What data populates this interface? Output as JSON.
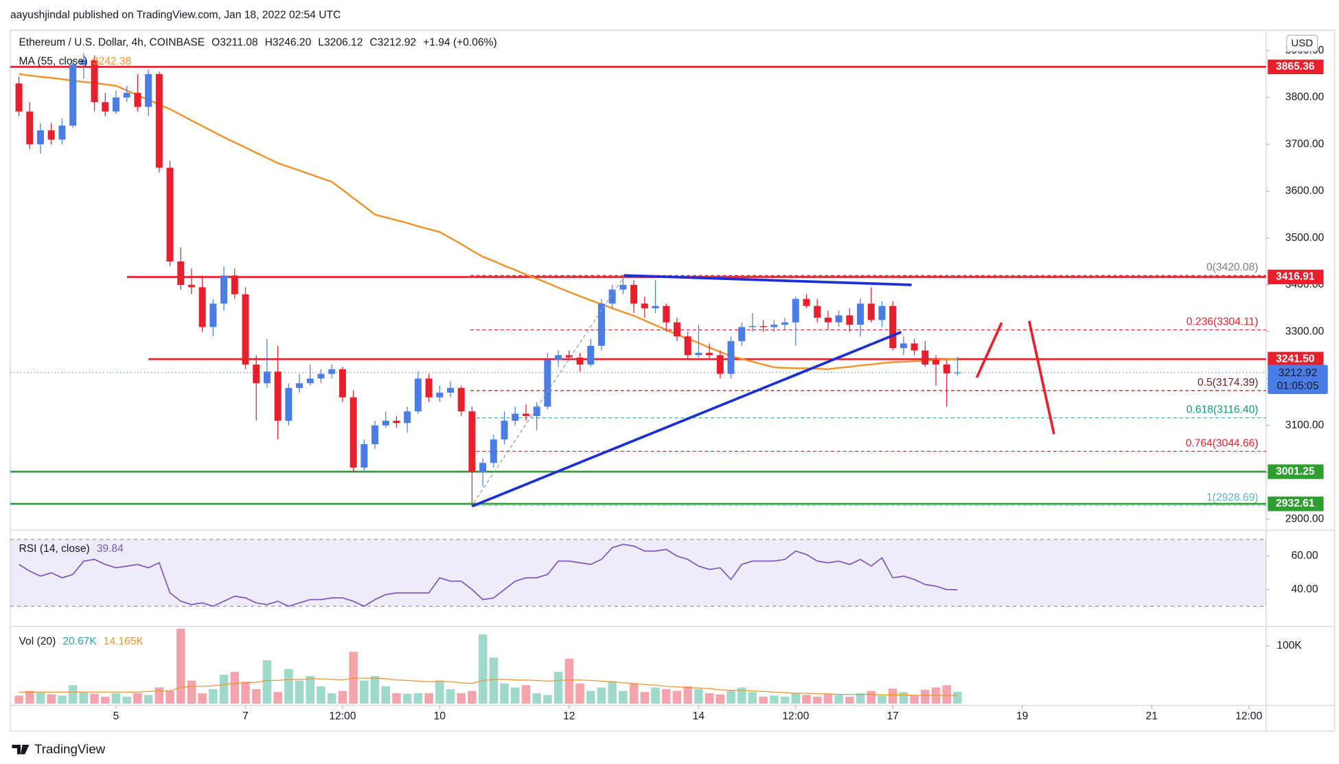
{
  "chart_data": {
    "type": "candlestick",
    "publisher": "aayushjindal published on TradingView.com, Jan 18, 2022 02:54 UTC",
    "symbol": "Ethereum / U.S. Dollar, 4h, COINBASE",
    "ohlc_text": [
      "O3211.08",
      "H3246.20",
      "L3206.12",
      "C3212.92",
      "+1.94 (+0.06%)"
    ],
    "currency": "USD",
    "footer": "TradingView",
    "up_color": "#4a7ee6",
    "down_color": "#e8202e",
    "xlim": [
      -0.8,
      115.6
    ],
    "xticks": [
      {
        "value": 9,
        "label": "5"
      },
      {
        "value": 21,
        "label": "7"
      },
      {
        "value": 30,
        "label": "12:00"
      },
      {
        "value": 39,
        "label": "10"
      },
      {
        "value": 51,
        "label": "12"
      },
      {
        "value": 63,
        "label": "14"
      },
      {
        "value": 72,
        "label": "12:00"
      },
      {
        "value": 81,
        "label": "17"
      },
      {
        "value": 93,
        "label": "19"
      },
      {
        "value": 105,
        "label": "21"
      },
      {
        "value": 114,
        "label": "12:00"
      }
    ],
    "ylim": [
      2881.7,
      3944
    ],
    "yticks": [
      {
        "value": 2900,
        "label": "2900.00"
      },
      {
        "value": 3000,
        "label": "3000.00"
      },
      {
        "value": 3100,
        "label": "3100.00"
      },
      {
        "value": 3200,
        "label": "3200.00"
      },
      {
        "value": 3300,
        "label": "3300.00"
      },
      {
        "value": 3400,
        "label": "3400.00"
      },
      {
        "value": 3500,
        "label": "3500.00"
      },
      {
        "value": 3600,
        "label": "3600.00"
      },
      {
        "value": 3700,
        "label": "3700.00"
      },
      {
        "value": 3800,
        "label": "3800.00"
      },
      {
        "value": 3900,
        "label": "3900.00"
      }
    ],
    "candles": [
      [
        3830,
        3845,
        3760,
        3770
      ],
      [
        3770,
        3790,
        3690,
        3700
      ],
      [
        3700,
        3745,
        3680,
        3730
      ],
      [
        3730,
        3745,
        3700,
        3710
      ],
      [
        3710,
        3755,
        3700,
        3740
      ],
      [
        3740,
        3880,
        3735,
        3870
      ],
      [
        3870,
        3895,
        3840,
        3880
      ],
      [
        3880,
        3890,
        3770,
        3790
      ],
      [
        3790,
        3810,
        3760,
        3770
      ],
      [
        3770,
        3815,
        3765,
        3800
      ],
      [
        3800,
        3825,
        3790,
        3810
      ],
      [
        3810,
        3850,
        3770,
        3780
      ],
      [
        3780,
        3860,
        3760,
        3850
      ],
      [
        3850,
        3855,
        3640,
        3650
      ],
      [
        3650,
        3665,
        3440,
        3450
      ],
      [
        3450,
        3480,
        3390,
        3400
      ],
      [
        3400,
        3435,
        3380,
        3395
      ],
      [
        3395,
        3420,
        3300,
        3310
      ],
      [
        3310,
        3370,
        3290,
        3360
      ],
      [
        3360,
        3440,
        3345,
        3420
      ],
      [
        3420,
        3435,
        3370,
        3380
      ],
      [
        3380,
        3395,
        3220,
        3230
      ],
      [
        3230,
        3250,
        3110,
        3190
      ],
      [
        3190,
        3285,
        3180,
        3215
      ],
      [
        3215,
        3270,
        3070,
        3110
      ],
      [
        3110,
        3190,
        3100,
        3180
      ],
      [
        3180,
        3210,
        3170,
        3190
      ],
      [
        3190,
        3230,
        3185,
        3200
      ],
      [
        3200,
        3220,
        3190,
        3210
      ],
      [
        3210,
        3230,
        3200,
        3220
      ],
      [
        3220,
        3225,
        3150,
        3160
      ],
      [
        3160,
        3175,
        3000,
        3010
      ],
      [
        3010,
        3070,
        3000,
        3060
      ],
      [
        3060,
        3110,
        3050,
        3100
      ],
      [
        3100,
        3130,
        3095,
        3110
      ],
      [
        3110,
        3120,
        3095,
        3105
      ],
      [
        3105,
        3140,
        3085,
        3130
      ],
      [
        3130,
        3215,
        3125,
        3200
      ],
      [
        3200,
        3210,
        3150,
        3160
      ],
      [
        3160,
        3185,
        3150,
        3170
      ],
      [
        3170,
        3195,
        3160,
        3180
      ],
      [
        3180,
        3185,
        3120,
        3130
      ],
      [
        3130,
        3140,
        2930,
        3000
      ],
      [
        3000,
        3030,
        2970,
        3020
      ],
      [
        3020,
        3080,
        3010,
        3070
      ],
      [
        3070,
        3130,
        3060,
        3110
      ],
      [
        3110,
        3140,
        3100,
        3125
      ],
      [
        3125,
        3145,
        3110,
        3120
      ],
      [
        3120,
        3150,
        3090,
        3140
      ],
      [
        3140,
        3255,
        3135,
        3240
      ],
      [
        3240,
        3260,
        3225,
        3250
      ],
      [
        3250,
        3260,
        3240,
        3245
      ],
      [
        3245,
        3255,
        3215,
        3230
      ],
      [
        3230,
        3285,
        3225,
        3270
      ],
      [
        3270,
        3370,
        3260,
        3360
      ],
      [
        3360,
        3400,
        3350,
        3390
      ],
      [
        3390,
        3420,
        3380,
        3400
      ],
      [
        3400,
        3410,
        3340,
        3360
      ],
      [
        3360,
        3375,
        3330,
        3350
      ],
      [
        3350,
        3410,
        3340,
        3355
      ],
      [
        3355,
        3360,
        3300,
        3320
      ],
      [
        3320,
        3330,
        3280,
        3290
      ],
      [
        3290,
        3300,
        3240,
        3250
      ],
      [
        3250,
        3315,
        3245,
        3255
      ],
      [
        3255,
        3275,
        3240,
        3250
      ],
      [
        3250,
        3260,
        3200,
        3210
      ],
      [
        3210,
        3290,
        3200,
        3280
      ],
      [
        3280,
        3320,
        3270,
        3310
      ],
      [
        3310,
        3340,
        3300,
        3312
      ],
      [
        3312,
        3325,
        3300,
        3310
      ],
      [
        3310,
        3325,
        3300,
        3315
      ],
      [
        3315,
        3330,
        3305,
        3320
      ],
      [
        3320,
        3375,
        3270,
        3370
      ],
      [
        3370,
        3380,
        3350,
        3355
      ],
      [
        3355,
        3370,
        3320,
        3330
      ],
      [
        3330,
        3345,
        3305,
        3320
      ],
      [
        3320,
        3345,
        3310,
        3335
      ],
      [
        3335,
        3350,
        3300,
        3315
      ],
      [
        3315,
        3370,
        3290,
        3360
      ],
      [
        3360,
        3395,
        3320,
        3325
      ],
      [
        3325,
        3365,
        3310,
        3355
      ],
      [
        3355,
        3365,
        3260,
        3265
      ],
      [
        3265,
        3290,
        3250,
        3275
      ],
      [
        3275,
        3285,
        3250,
        3260
      ],
      [
        3260,
        3280,
        3225,
        3230
      ],
      [
        3240,
        3250,
        3185,
        3230
      ],
      [
        3230,
        3240,
        3140,
        3211
      ],
      [
        3211.08,
        3246.2,
        3206.12,
        3212.92
      ]
    ],
    "ma": {
      "name": "MA (55, close)",
      "value": 3242.38,
      "color": "#f0932b",
      "values": [
        3850,
        3847,
        3844,
        3842,
        3839,
        3836,
        3833,
        3831,
        3828,
        3825,
        3815,
        3805,
        3795,
        3785,
        3775,
        3763,
        3751,
        3739,
        3727,
        3715,
        3704,
        3693,
        3682,
        3671,
        3660,
        3652,
        3644,
        3636,
        3628,
        3620,
        3603,
        3585,
        3568,
        3550,
        3544,
        3538,
        3532,
        3525,
        3519,
        3513,
        3500,
        3487,
        3473,
        3460,
        3451,
        3441,
        3432,
        3422,
        3413,
        3404,
        3394,
        3385,
        3376,
        3367,
        3359,
        3350,
        3342,
        3334,
        3324,
        3314,
        3304,
        3294,
        3285,
        3276,
        3266,
        3257,
        3248,
        3242,
        3236,
        3230,
        3224,
        3223,
        3222,
        3222,
        3221,
        3220,
        3223,
        3225,
        3228,
        3230,
        3233,
        3235,
        3236,
        3237,
        3238,
        3240,
        3241,
        3242.38
      ]
    },
    "levels": [
      {
        "value": 3865.36,
        "label": "3865.36",
        "color": "#e8202e"
      },
      {
        "value": 3416.91,
        "label": "3416.91",
        "color": "#e8202e"
      },
      {
        "value": 3241.5,
        "label": "3241.50",
        "color": "#e8202e"
      },
      {
        "value": 3001.25,
        "label": "3001.25",
        "color": "#2fa02f"
      },
      {
        "value": 2932.61,
        "label": "2932.61",
        "color": "#2fa02f"
      }
    ],
    "current": {
      "value": 3212.92,
      "label": "3212.92",
      "countdown": "01:05:05",
      "color": "#4a7ee6"
    },
    "fib": [
      {
        "value": 3420.08,
        "label": "0(3420.08)",
        "color": "#787b86",
        "line": "#e8202e"
      },
      {
        "value": 3304.11,
        "label": "0.236(3304.11)",
        "color": "#e8202e",
        "line": "#e8202e"
      },
      {
        "value": 3174.39,
        "label": "0.5(3174.39)",
        "color": "#6b1e22",
        "line": "#8b1e26"
      },
      {
        "value": 3116.4,
        "label": "0.618(3116.40)",
        "color": "#089981",
        "line": "#44b5a4"
      },
      {
        "value": 3044.66,
        "label": "0.764(3044.66)",
        "color": "#e8202e",
        "line": "#e8202e"
      },
      {
        "value": 2928.69,
        "label": "1(2928.69)",
        "color": "#5ab0c4",
        "line": "#9bcad6"
      }
    ],
    "rsi": {
      "name": "RSI (14, close)",
      "value": 39.84,
      "color": "#7e57c2",
      "ylim": [
        19,
        74.4
      ],
      "band": [
        30,
        70
      ],
      "yticks": [
        {
          "value": 40,
          "label": "40.00"
        },
        {
          "value": 60,
          "label": "60.00"
        }
      ],
      "values": [
        55,
        51,
        48,
        50,
        47,
        49,
        57,
        58,
        55,
        53,
        54,
        55,
        53,
        56,
        38,
        33,
        31,
        32,
        30,
        33,
        36,
        35,
        32,
        31,
        33,
        30,
        32,
        34,
        34,
        35,
        35,
        33,
        30,
        34,
        37,
        38,
        38,
        38,
        38,
        47,
        45,
        45,
        40,
        34,
        35,
        40,
        45,
        47,
        47,
        49,
        57,
        57,
        56,
        55,
        58,
        65,
        67,
        66,
        63,
        63,
        64,
        60,
        58,
        54,
        52,
        53,
        46,
        55,
        57,
        57,
        57,
        58,
        63,
        61,
        57,
        56,
        57,
        55,
        58,
        54,
        59,
        47,
        48,
        46,
        43,
        42,
        40,
        39.84
      ]
    },
    "volume": {
      "name": "Vol (20)",
      "value": 20670,
      "value_label": "20.67K",
      "ma_value": 14165,
      "ma_value_label": "14.165K",
      "up_color": "#9fd9cc",
      "down_color": "#f5a3ab",
      "ma_color": "#f0932b",
      "ylim": [
        0,
        134000
      ],
      "yticks": [
        {
          "value": 100000,
          "label": "100K"
        }
      ],
      "values": [
        14000,
        22000,
        20000,
        16000,
        14000,
        32000,
        20000,
        17000,
        12000,
        18000,
        12000,
        18000,
        15000,
        28000,
        22000,
        130000,
        40000,
        18000,
        25000,
        50000,
        55000,
        38000,
        25000,
        75000,
        20000,
        60000,
        40000,
        48000,
        30000,
        18000,
        22000,
        90000,
        40000,
        48000,
        30000,
        18000,
        17000,
        18000,
        18000,
        40000,
        25000,
        18000,
        22000,
        120000,
        80000,
        35000,
        28000,
        32000,
        18000,
        15000,
        55000,
        78000,
        35000,
        22000,
        28000,
        38000,
        22000,
        35000,
        20000,
        28000,
        25000,
        22000,
        30000,
        25000,
        18000,
        16000,
        22000,
        28000,
        20000,
        12000,
        14000,
        12000,
        18000,
        15000,
        12000,
        16000,
        15000,
        12000,
        18000,
        22000,
        14000,
        26000,
        20000,
        14000,
        24000,
        28000,
        32000,
        20670
      ],
      "ma": [
        20000,
        20000,
        20000,
        20000,
        20000,
        20000,
        20000,
        20000,
        20000,
        20000,
        20000,
        20000,
        21000,
        22000,
        22000,
        28000,
        30000,
        30000,
        31000,
        33000,
        35000,
        36000,
        37000,
        40000,
        40000,
        42000,
        42000,
        43000,
        43000,
        42000,
        41000,
        44000,
        44000,
        44000,
        43000,
        41000,
        40000,
        39000,
        38000,
        39000,
        38000,
        36000,
        35000,
        40000,
        42000,
        42000,
        41000,
        41000,
        40000,
        39000,
        40000,
        41000,
        41000,
        40000,
        39000,
        38000,
        36000,
        35000,
        33000,
        32000,
        30000,
        29000,
        28000,
        27000,
        26000,
        24000,
        23000,
        23000,
        22000,
        21000,
        20000,
        19000,
        18000,
        18000,
        17000,
        17000,
        16000,
        16000,
        16000,
        16000,
        15000,
        15000,
        15000,
        14500,
        14500,
        14300,
        14200,
        14165
      ]
    }
  }
}
